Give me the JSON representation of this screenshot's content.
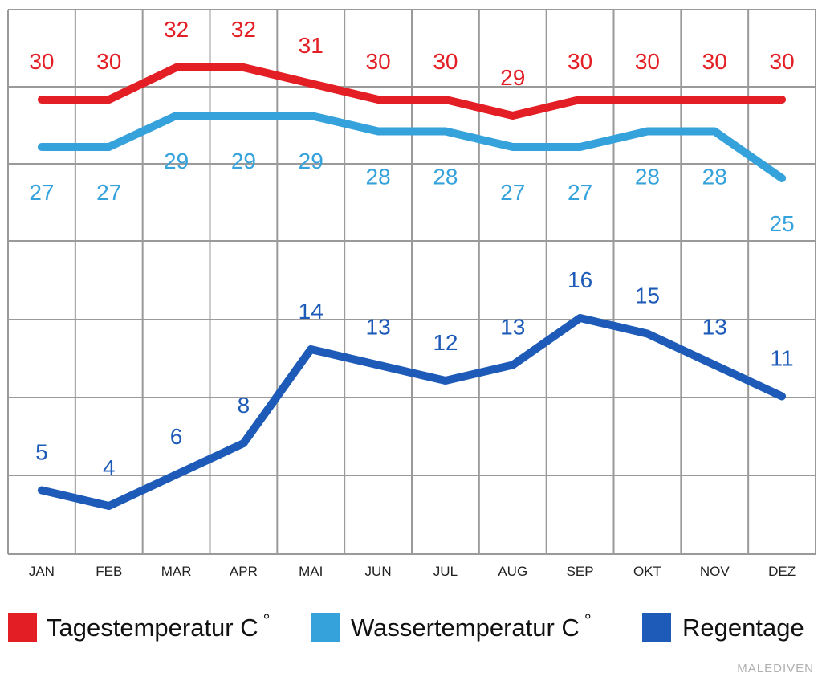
{
  "chart_data": {
    "type": "line",
    "categories": [
      "JAN",
      "FEB",
      "MAR",
      "APR",
      "MAI",
      "JUN",
      "JUL",
      "AUG",
      "SEP",
      "OKT",
      "NOV",
      "DEZ"
    ],
    "series": [
      {
        "name": "Tagestemperatur C°",
        "key": "day",
        "color": "#e31e24",
        "values": [
          30,
          30,
          32,
          32,
          31,
          30,
          30,
          29,
          30,
          30,
          30,
          30
        ]
      },
      {
        "name": "Wassertemperatur C°",
        "key": "water",
        "color": "#35a2db",
        "values": [
          27,
          27,
          29,
          29,
          29,
          28,
          28,
          27,
          27,
          28,
          28,
          25
        ]
      },
      {
        "name": "Regentage",
        "key": "rain",
        "color": "#1e5bb8",
        "values": [
          5,
          4,
          6,
          8,
          14,
          13,
          12,
          13,
          16,
          15,
          13,
          11
        ]
      }
    ],
    "grid": true,
    "legend_position": "bottom"
  },
  "legend": {
    "items": [
      {
        "label": "Tagestemperatur C",
        "suffix": "°",
        "color": "#e31e24"
      },
      {
        "label": "Wassertemperatur C",
        "suffix": "°",
        "color": "#35a2db"
      },
      {
        "label": "Regentage",
        "suffix": "",
        "color": "#1e5bb8"
      }
    ]
  },
  "watermark": "MALEDIVEN"
}
